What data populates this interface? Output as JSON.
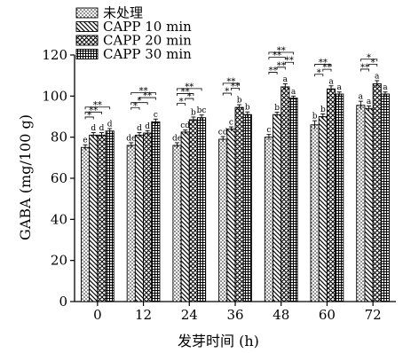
{
  "chart_data": {
    "type": "bar",
    "title": "",
    "xlabel": "发芽时间 (h)",
    "ylabel": "GABA (mg/100 g)",
    "ylim": [
      0,
      120
    ],
    "yticks": [
      0,
      20,
      40,
      60,
      80,
      100,
      120
    ],
    "categories": [
      "0",
      "12",
      "24",
      "36",
      "48",
      "60",
      "72"
    ],
    "legend_position": "top-left",
    "grid": false,
    "series": [
      {
        "name": "未处理",
        "pattern": "dots",
        "values": [
          75,
          76,
          76,
          79,
          80,
          86,
          95.5
        ],
        "errors": [
          1.3,
          1.3,
          1.3,
          1.3,
          1.3,
          2.0,
          2.0
        ],
        "letters": [
          "e",
          "de",
          "de",
          "cd",
          "c",
          "b",
          "a"
        ]
      },
      {
        "name": "CAPP 10 min",
        "pattern": "backslash",
        "values": [
          81,
          81,
          82.5,
          84,
          91,
          90,
          94
        ],
        "errors": [
          1.2,
          1.2,
          1.0,
          1.0,
          1.2,
          1.3,
          1.2
        ],
        "letters": [
          "d",
          "d",
          "cd",
          "c",
          "b",
          "b",
          "a"
        ]
      },
      {
        "name": "CAPP 20 min",
        "pattern": "crosshatch",
        "values": [
          81,
          82,
          88.5,
          94.5,
          104.5,
          103.5,
          106
        ],
        "errors": [
          1.2,
          1.2,
          1.3,
          1.3,
          1.5,
          1.5,
          1.5
        ],
        "letters": [
          "d",
          "d",
          "b",
          "b",
          "a",
          "a",
          "a"
        ]
      },
      {
        "name": "CAPP 30 min",
        "pattern": "grid",
        "values": [
          83,
          87.5,
          89.5,
          91,
          99,
          101,
          101
        ],
        "errors": [
          1.2,
          1.3,
          1.3,
          1.3,
          1.0,
          1.0,
          1.0
        ],
        "letters": [
          "d",
          "c",
          "bc",
          "b",
          "a",
          "a",
          "a"
        ]
      }
    ],
    "significance": [
      {
        "group": 0,
        "brackets": [
          {
            "from": 0,
            "to": 1,
            "label": "*",
            "level": 0
          },
          {
            "from": 0,
            "to": 2,
            "label": "**",
            "level": 1
          },
          {
            "from": 0,
            "to": 3,
            "label": "**",
            "level": 2
          }
        ]
      },
      {
        "group": 1,
        "brackets": [
          {
            "from": 0,
            "to": 1,
            "label": "*",
            "level": 0
          },
          {
            "from": 0,
            "to": 2,
            "label": "*",
            "level": 1
          },
          {
            "from": 1,
            "to": 3,
            "label": "**",
            "level": 2
          },
          {
            "from": 0,
            "to": 3,
            "label": "**",
            "level": 3
          }
        ]
      },
      {
        "group": 2,
        "brackets": [
          {
            "from": 0,
            "to": 1,
            "label": "*",
            "level": 0
          },
          {
            "from": 1,
            "to": 2,
            "label": "*",
            "level": 1
          },
          {
            "from": 0,
            "to": 2,
            "label": "**",
            "level": 2
          },
          {
            "from": 0,
            "to": 3,
            "label": "**",
            "level": 3
          }
        ]
      },
      {
        "group": 3,
        "brackets": [
          {
            "from": 0,
            "to": 1,
            "label": "*",
            "level": 0
          },
          {
            "from": 1,
            "to": 2,
            "label": "**",
            "level": 1
          },
          {
            "from": 0,
            "to": 2,
            "label": "**",
            "level": 2
          }
        ]
      },
      {
        "group": 4,
        "brackets": [
          {
            "from": 0,
            "to": 1,
            "label": "**",
            "level": 0
          },
          {
            "from": 1,
            "to": 2,
            "label": "**",
            "level": 1
          },
          {
            "from": 2,
            "to": 3,
            "label": "**",
            "level": 2
          },
          {
            "from": 0,
            "to": 2,
            "label": "**",
            "level": 3
          },
          {
            "from": 0,
            "to": 3,
            "label": "**",
            "level": 4
          }
        ]
      },
      {
        "group": 5,
        "brackets": [
          {
            "from": 0,
            "to": 1,
            "label": "*",
            "level": 0
          },
          {
            "from": 1,
            "to": 2,
            "label": "**",
            "level": 1
          },
          {
            "from": 0,
            "to": 2,
            "label": "**",
            "level": 2
          }
        ]
      },
      {
        "group": 6,
        "brackets": [
          {
            "from": 0,
            "to": 1,
            "label": "**",
            "level": 0
          },
          {
            "from": 1,
            "to": 2,
            "label": "*",
            "level": 1
          },
          {
            "from": 0,
            "to": 2,
            "label": "*",
            "level": 2
          }
        ]
      }
    ]
  }
}
